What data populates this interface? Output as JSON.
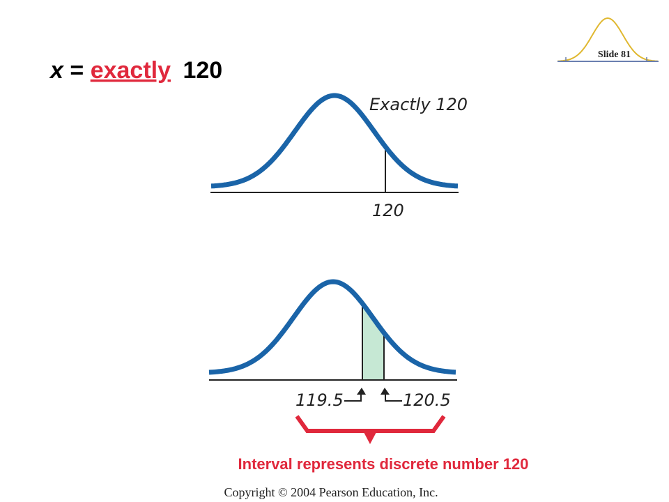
{
  "slide_label": "Slide 81",
  "title": {
    "variable": "x",
    "equals": "=",
    "emphasis": "exactly",
    "value": "120"
  },
  "figure_top": {
    "label": "Exactly 120",
    "tick": "120"
  },
  "figure_bottom": {
    "lower": "119.5",
    "upper": "120.5"
  },
  "caption": "Interval represents discrete number 120",
  "footer": "Copyright © 2004 Pearson Education, Inc."
}
